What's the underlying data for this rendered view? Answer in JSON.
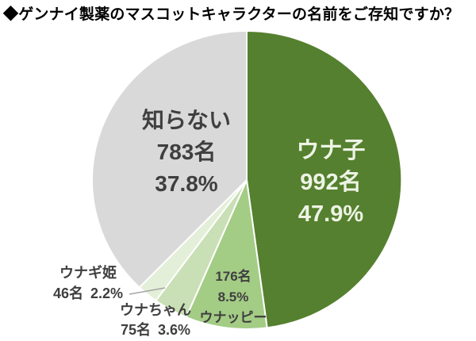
{
  "title": "◆ゲンナイ製薬のマスコットキャラクターの名前をご存知ですか？",
  "chart_data": {
    "type": "pie",
    "title": "◆ゲンナイ製薬のマスコットキャラクターの名前をご存知ですか？",
    "unit": "名",
    "start_angle_deg": 0,
    "direction": "clockwise",
    "legend": "none",
    "background": "#ffffff",
    "slice_border_color": "#ffffff",
    "slices": [
      {
        "name": "ウナ子",
        "count": 992,
        "count_label": "992名",
        "pct": 47.9,
        "pct_label": "47.9%",
        "color": "#55802f",
        "label_color": "#edf3e5"
      },
      {
        "name": "ウナッピー",
        "count": 176,
        "count_label": "176名",
        "pct": 8.5,
        "pct_label": "8.5%",
        "color": "#a3cc85",
        "label_color": "#3f3f3f"
      },
      {
        "name": "ウナちゃん",
        "count": 75,
        "count_label": "75名",
        "pct": 3.6,
        "pct_label": "3.6%",
        "color": "#c9dfb5",
        "label_color": "#3f3f3f"
      },
      {
        "name": "ウナギ姫",
        "count": 46,
        "count_label": "46名",
        "pct": 2.2,
        "pct_label": "2.2%",
        "color": "#e3efd8",
        "label_color": "#3f3f3f"
      },
      {
        "name": "知らない",
        "count": 783,
        "count_label": "783名",
        "pct": 37.8,
        "pct_label": "37.8%",
        "color": "#d9d9d9",
        "label_color": "#3f3f3f"
      }
    ]
  }
}
